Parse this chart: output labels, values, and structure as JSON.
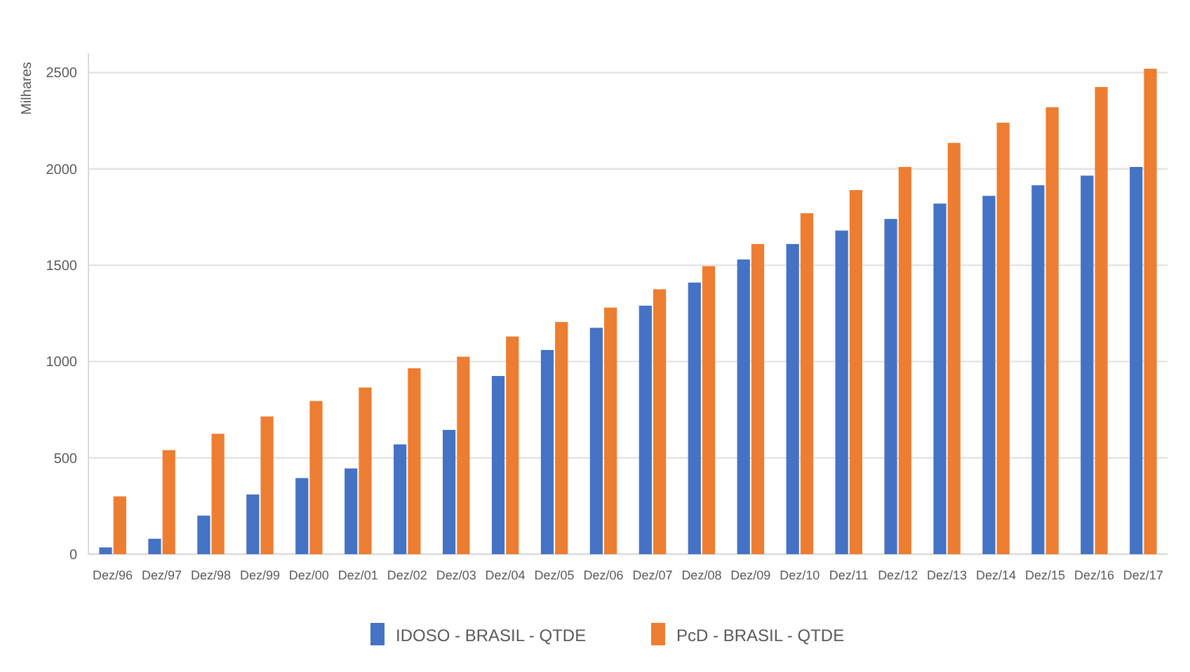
{
  "chart_data": {
    "type": "bar",
    "ylabel": "Milhares",
    "categories": [
      "Dez/96",
      "Dez/97",
      "Dez/98",
      "Dez/99",
      "Dez/00",
      "Dez/01",
      "Dez/02",
      "Dez/03",
      "Dez/04",
      "Dez/05",
      "Dez/06",
      "Dez/07",
      "Dez/08",
      "Dez/09",
      "Dez/10",
      "Dez/11",
      "Dez/12",
      "Dez/13",
      "Dez/14",
      "Dez/15",
      "Dez/16",
      "Dez/17"
    ],
    "series": [
      {
        "name": "IDOSO - BRASIL - QTDE",
        "color": "#4472c4",
        "values": [
          35,
          80,
          200,
          310,
          395,
          445,
          570,
          645,
          925,
          1060,
          1175,
          1290,
          1410,
          1530,
          1610,
          1680,
          1740,
          1820,
          1860,
          1915,
          1965,
          2010
        ]
      },
      {
        "name": "PcD - BRASIL - QTDE",
        "color": "#ed7d31",
        "values": [
          300,
          540,
          625,
          715,
          795,
          865,
          965,
          1025,
          1130,
          1205,
          1280,
          1375,
          1495,
          1610,
          1770,
          1890,
          2010,
          2135,
          2240,
          2320,
          2425,
          2520
        ]
      }
    ],
    "ylim": [
      0,
      2600
    ],
    "yticks": [
      0,
      500,
      1000,
      1500,
      2000,
      2500
    ],
    "grid": "y",
    "legend": "bottom"
  }
}
